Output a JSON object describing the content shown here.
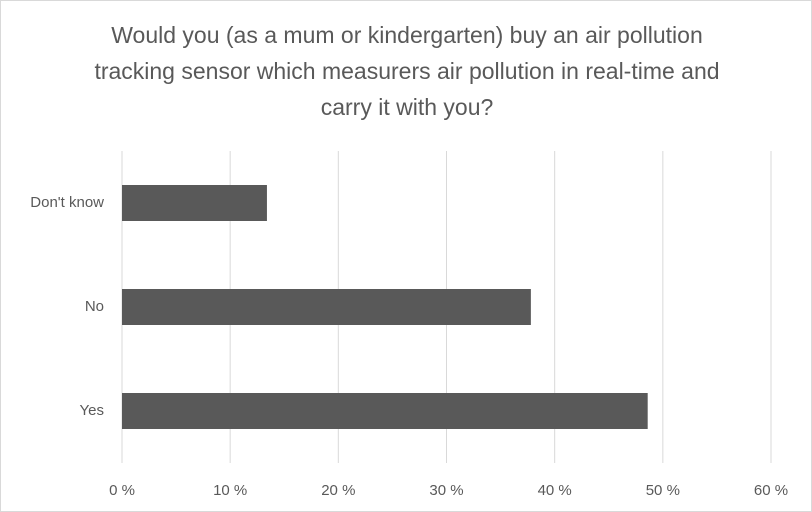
{
  "chart_data": {
    "type": "bar",
    "orientation": "horizontal",
    "title": "Would you (as a mum or kindergarten) buy an air pollution tracking sensor which measurers air pollution in real-time and carry it with you?",
    "categories": [
      "Don't know",
      "No",
      "Yes"
    ],
    "values": [
      13.4,
      37.8,
      48.6
    ],
    "color": "#595959",
    "xlim": [
      0,
      60
    ],
    "xticks": [
      {
        "value": 0,
        "label": "0 %"
      },
      {
        "value": 10,
        "label": "10 %"
      },
      {
        "value": 20,
        "label": "20 %"
      },
      {
        "value": 30,
        "label": "30 %"
      },
      {
        "value": 40,
        "label": "40 %"
      },
      {
        "value": 50,
        "label": "50 %"
      },
      {
        "value": 60,
        "label": "60 %"
      }
    ],
    "grid": true
  }
}
